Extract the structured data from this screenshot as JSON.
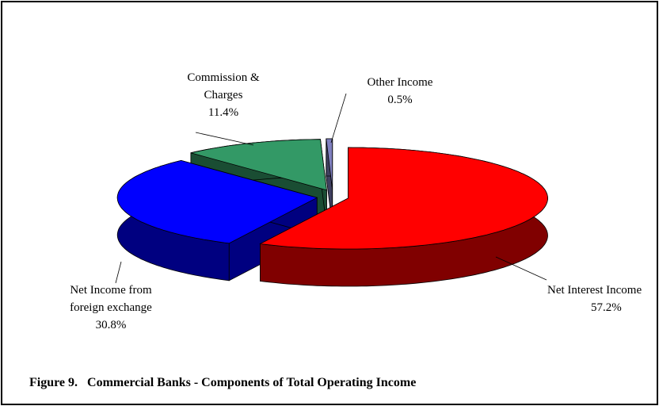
{
  "chart_data": {
    "type": "pie3d",
    "title": "Figure 9.   Commercial Banks - Components of Total Operating Income",
    "categories": [
      "Net Interest Income",
      "Net Income from foreign exchange",
      "Commission & Charges",
      "Other Income"
    ],
    "values": [
      57.2,
      30.8,
      11.4,
      0.5
    ],
    "value_labels": [
      "57.2%",
      "30.8%",
      "11.4%",
      "0.5%"
    ],
    "colors": [
      "#ff0000",
      "#0000ff",
      "#339966",
      "#8080c0"
    ]
  }
}
